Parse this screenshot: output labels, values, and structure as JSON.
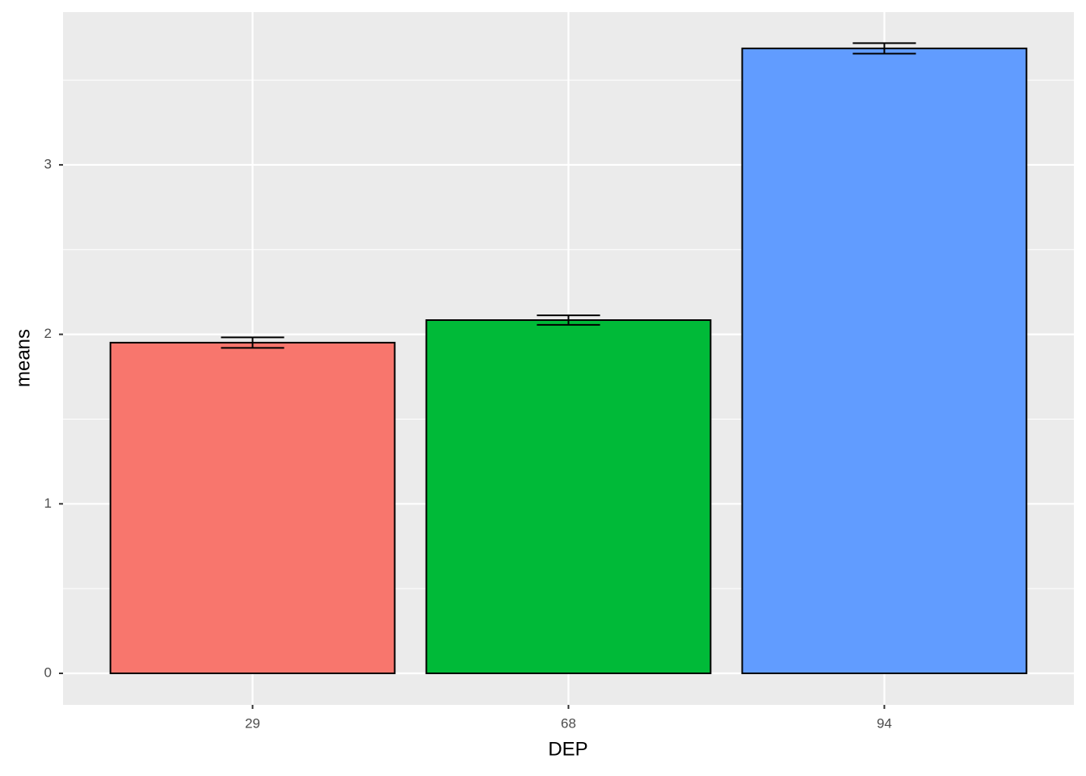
{
  "chart_data": {
    "type": "bar",
    "x_label": "DEP",
    "y_label": "means",
    "categories": [
      "29",
      "68",
      "94"
    ],
    "values": [
      1.951,
      2.084,
      3.687
    ],
    "errors": [
      0.031,
      0.028,
      0.031
    ],
    "colors": [
      "#F8766D",
      "#00BA38",
      "#619CFF"
    ],
    "ylim": [
      -0.186,
      3.901
    ],
    "yticks": [
      0,
      1,
      2,
      3
    ],
    "y_minor_grid": [
      0.5,
      1.5,
      2.5,
      3.5
    ],
    "grid": true
  }
}
